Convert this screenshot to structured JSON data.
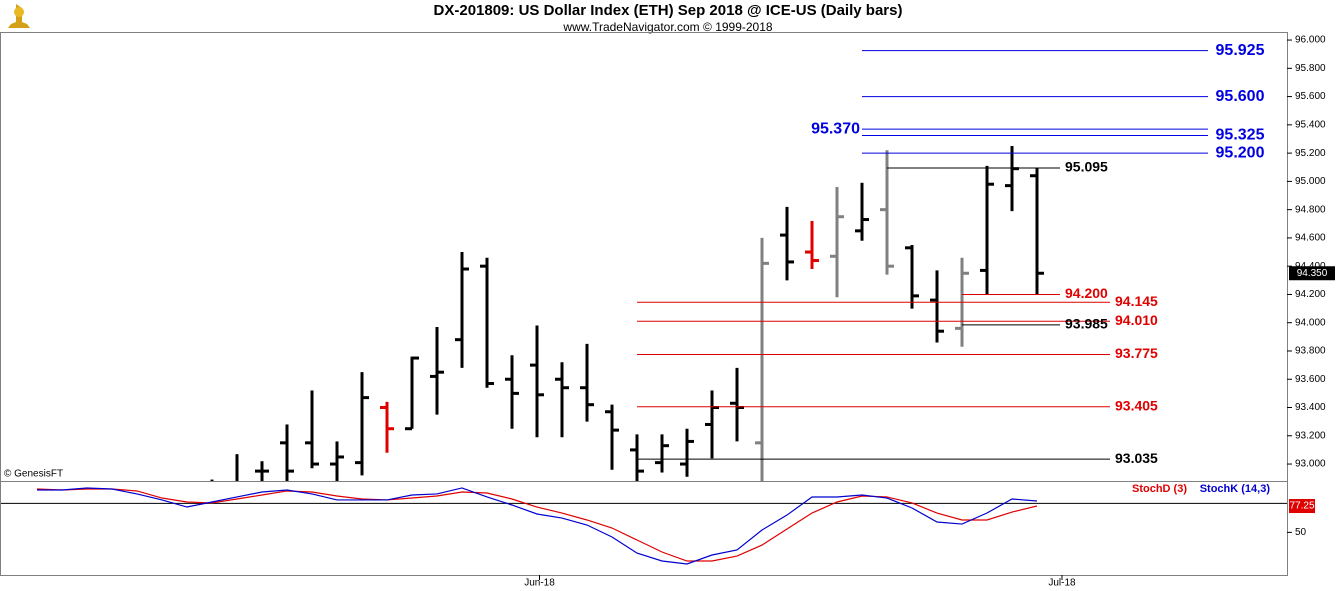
{
  "title": "DX-201809:  US Dollar Index (ETH) Sep 2018 @ ICE-US  (Daily bars)",
  "subtitle": "www.TradeNavigator.com © 1999-2018",
  "watermark": "© GenesisFT",
  "chart_data": [
    {
      "type": "ohlc",
      "categories": [
        null,
        null,
        null,
        null,
        null,
        null,
        null,
        null,
        null,
        null,
        null,
        null,
        null,
        null,
        null,
        null,
        null,
        null,
        null,
        null,
        null,
        null,
        null,
        null,
        null,
        null,
        null,
        null,
        null,
        null,
        null,
        null,
        null,
        null,
        null,
        null,
        null,
        null,
        null,
        null,
        null
      ],
      "open": [
        null,
        null,
        null,
        null,
        null,
        null,
        null,
        92.7,
        92.8,
        92.95,
        93.15,
        93.15,
        93.0,
        93.01,
        93.4,
        93.25,
        93.62,
        93.88,
        94.4,
        93.6,
        93.7,
        93.6,
        93.54,
        93.37,
        93.1,
        93.01,
        93.0,
        93.28,
        93.43,
        93.15,
        94.62,
        94.5,
        94.47,
        94.65,
        94.8,
        94.53,
        94.16,
        93.96,
        94.37,
        94.97,
        95.04
      ],
      "high": [
        null,
        null,
        null,
        null,
        null,
        null,
        null,
        92.89,
        93.07,
        93.02,
        93.28,
        93.52,
        93.16,
        93.65,
        93.44,
        93.76,
        93.97,
        94.5,
        94.46,
        93.77,
        93.98,
        93.72,
        93.85,
        93.42,
        93.21,
        93.21,
        93.25,
        93.52,
        93.68,
        94.6,
        94.82,
        94.72,
        94.96,
        94.99,
        95.22,
        94.55,
        94.37,
        94.46,
        95.11,
        95.25,
        95.095
      ],
      "low": [
        null,
        null,
        null,
        null,
        null,
        null,
        null,
        92.5,
        92.6,
        92.85,
        92.85,
        92.97,
        92.85,
        92.92,
        93.08,
        93.25,
        93.35,
        93.68,
        93.54,
        93.25,
        93.19,
        93.19,
        93.3,
        92.96,
        92.88,
        92.94,
        92.91,
        93.04,
        93.16,
        92.88,
        94.3,
        94.38,
        94.18,
        94.58,
        94.34,
        94.1,
        93.86,
        93.83,
        94.2,
        94.79,
        94.2
      ],
      "close": [
        null,
        null,
        null,
        null,
        null,
        null,
        null,
        92.8,
        92.85,
        92.95,
        92.95,
        93.0,
        93.05,
        93.47,
        93.25,
        93.75,
        93.65,
        94.38,
        93.57,
        93.5,
        93.49,
        93.54,
        93.42,
        93.24,
        92.95,
        93.13,
        93.16,
        93.4,
        93.4,
        94.42,
        94.43,
        94.44,
        94.75,
        94.73,
        94.4,
        94.19,
        93.94,
        94.35,
        94.98,
        95.09,
        94.35
      ],
      "colors": [
        null,
        null,
        null,
        null,
        null,
        null,
        null,
        "#000",
        "#000",
        "#000",
        "#000",
        "#000",
        "#000",
        "#000",
        "#e00000",
        "#000",
        "#000",
        "#000",
        "#000",
        "#000",
        "#000",
        "#000",
        "#000",
        "#000",
        "#000",
        "#000",
        "#000",
        "#000",
        "#000",
        "#808080",
        "#000",
        "#e00000",
        "#808080",
        "#000",
        "#808080",
        "#000",
        "#000",
        "#808080",
        "#000",
        "#000",
        "#000"
      ],
      "current_price": {
        "value": 94.35,
        "label": "94.350"
      },
      "levels": [
        {
          "value": 95.925,
          "color": "#0000e0"
        },
        {
          "value": 95.6,
          "label": "95.600",
          "color": "#0000e0"
        },
        {
          "value": 95.37,
          "label": "95.370",
          "color": "#0000e0"
        },
        {
          "value": 95.325,
          "color": "#0000e0"
        },
        {
          "value": 95.2,
          "label": "95.200",
          "color": "#0000e0"
        },
        {
          "value": 95.095,
          "color": "#000000"
        },
        {
          "value": 94.2,
          "label": "94.200",
          "color": "#e00000"
        },
        {
          "value": 94.145,
          "color": "#e00000"
        },
        {
          "value": 94.01,
          "label": "94.010",
          "color": "#e00000"
        },
        {
          "value": 93.985,
          "color": "#000000"
        },
        {
          "value": 93.775,
          "color": "#e00000"
        },
        {
          "value": 93.405,
          "color": "#e00000"
        },
        {
          "value": 93.035,
          "color": "#000000"
        }
      ],
      "ylim": [
        92.88,
        96.057
      ],
      "yticks": [
        {
          "value": 93,
          "label": "93.000"
        },
        {
          "value": 93.2,
          "label": "93.200"
        },
        {
          "value": 93.4,
          "label": "93.400"
        },
        {
          "value": 93.6,
          "label": "93.600"
        },
        {
          "value": 93.8,
          "label": "93.800"
        },
        {
          "value": 94,
          "label": "94.000"
        },
        {
          "value": 94.2,
          "label": "94.200"
        },
        {
          "value": 94.4,
          "label": "94.400"
        },
        {
          "value": 94.6,
          "label": "94.600"
        },
        {
          "value": 94.8,
          "label": "94.800"
        },
        {
          "value": 95,
          "label": "95.000"
        },
        {
          "value": 95.2,
          "label": "95.200"
        },
        {
          "value": 95.4,
          "label": "95.400"
        },
        {
          "value": 95.6,
          "label": "95.600"
        },
        {
          "value": 95.8,
          "label": "95.800"
        },
        {
          "value": 96,
          "label": "96.000"
        }
      ]
    },
    {
      "type": "line",
      "series": [
        {
          "name": "StochD (3)",
          "color": "#e00000",
          "values": [
            94.8,
            93.8,
            94.8,
            94.8,
            92.8,
            85.5,
            81.4,
            80.4,
            84.5,
            88.6,
            92.8,
            91.7,
            87.6,
            84.5,
            83.5,
            85.5,
            87.6,
            91.7,
            90.7,
            84.5,
            76.2,
            70.0,
            62.8,
            54.5,
            42.1,
            29.7,
            20.4,
            20.4,
            25.5,
            36.9,
            53.5,
            70.0,
            81.4,
            87.6,
            86.6,
            80.4,
            70.0,
            62.8,
            62.8,
            71.0,
            77.25
          ]
        },
        {
          "name": "StochK (14,3)",
          "color": "#0000d0",
          "values": [
            93.8,
            93.8,
            95.9,
            94.8,
            89.7,
            83.5,
            76.2,
            81.4,
            86.6,
            91.7,
            93.8,
            89.7,
            83.5,
            83.5,
            83.5,
            88.6,
            89.7,
            95.9,
            86.6,
            78.3,
            69.0,
            64.8,
            57.6,
            45.2,
            28.6,
            20.4,
            17.3,
            26.6,
            31.8,
            52.4,
            67.9,
            86.6,
            86.6,
            88.6,
            85.5,
            75.2,
            60.7,
            58.6,
            70.0,
            84.5,
            82.4
          ]
        }
      ],
      "reference_line": 80,
      "ylim": [
        5,
        100
      ],
      "yticks": [
        50
      ],
      "xticks": [
        {
          "value": 20.1,
          "label": "Jun-18"
        },
        {
          "value": 41,
          "label": "Jul-18"
        }
      ]
    }
  ]
}
